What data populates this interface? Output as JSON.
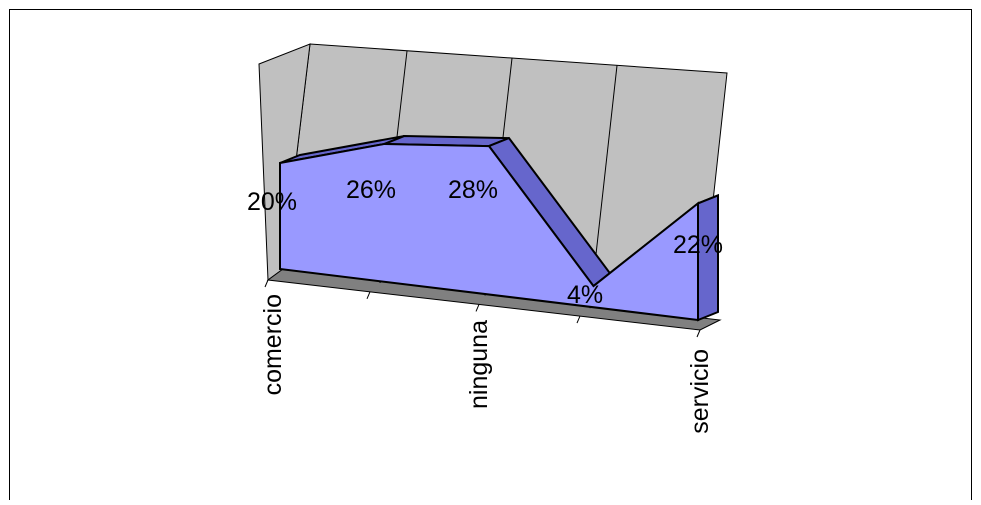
{
  "chart_data": {
    "type": "area",
    "three_d": true,
    "categories": [
      "comercio",
      "",
      "ninguna",
      "",
      "servicio"
    ],
    "values": [
      20,
      26,
      28,
      4,
      22
    ],
    "data_labels": [
      "20%",
      "26%",
      "28%",
      "4%",
      "22%"
    ],
    "value_unit": "%",
    "title": "",
    "xlabel": "",
    "ylabel": "",
    "legend": "none",
    "grid": "vertical",
    "colors": {
      "area_front": "#9999ff",
      "area_side": "#6666cc",
      "walls": "#c0c0c0",
      "floor": "#808080",
      "gridline": "#000000"
    }
  }
}
